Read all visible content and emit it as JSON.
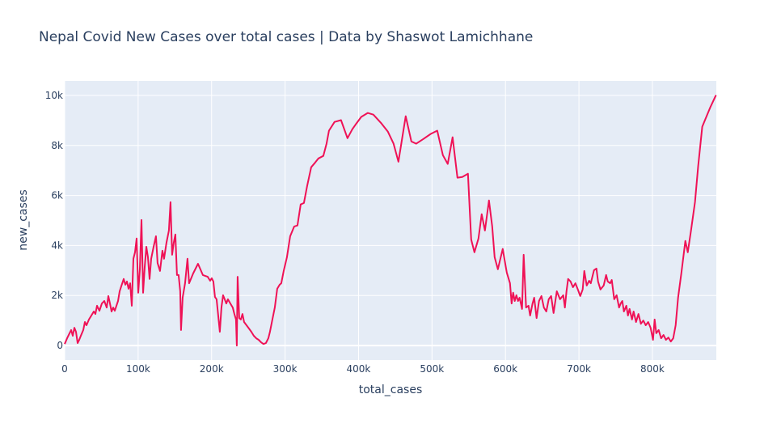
{
  "chart_data": {
    "type": "line",
    "title": "Nepal Covid New Cases over total cases | Data by Shaswot Lamichhane",
    "x_label": "total_cases",
    "y_label": "new_cases",
    "xlim": [
      0,
      887000
    ],
    "ylim": [
      -580,
      10580
    ],
    "xticks": [
      0,
      {
        "value": 100000,
        "label": "100k"
      },
      {
        "value": 200000,
        "label": "200k"
      },
      {
        "value": 300000,
        "label": "300k"
      },
      {
        "value": 400000,
        "label": "400k"
      },
      {
        "value": 500000,
        "label": "500k"
      },
      {
        "value": 600000,
        "label": "600k"
      },
      {
        "value": 700000,
        "label": "700k"
      },
      {
        "value": 800000,
        "label": "800k"
      }
    ],
    "yticks": [
      0,
      {
        "value": 2000,
        "label": "2k"
      },
      {
        "value": 4000,
        "label": "4k"
      },
      {
        "value": 6000,
        "label": "6k"
      },
      {
        "value": 8000,
        "label": "8k"
      },
      {
        "value": 10000,
        "label": "10k"
      }
    ],
    "grid": true,
    "series": [
      {
        "color": "#ef1256",
        "x": [
          0,
          3300,
          6600,
          8800,
          11000,
          13200,
          15400,
          17600,
          19800,
          22000,
          25300,
          27500,
          29700,
          33000,
          36300,
          39600,
          41800,
          44000,
          47300,
          50600,
          53900,
          57200,
          59400,
          61600,
          63800,
          66000,
          68200,
          70400,
          72600,
          74800,
          77000,
          80300,
          82500,
          84700,
          86900,
          89100,
          91300,
          93500,
          95700,
          97900,
          100100,
          102300,
          104500,
          106700,
          108900,
          111100,
          113300,
          115500,
          117700,
          121000,
          124300,
          126500,
          129800,
          133100,
          135300,
          138600,
          141900,
          144100,
          146300,
          148500,
          150700,
          152900,
          155100,
          157300,
          158400,
          160600,
          163900,
          167200,
          169400,
          174900,
          181500,
          188100,
          194700,
          198000,
          200200,
          202400,
          204600,
          206800,
          209000,
          211200,
          213400,
          215600,
          217800,
          220000,
          222200,
          225500,
          228800,
          231000,
          233200,
          234300,
          235400,
          237600,
          239800,
          242000,
          244200,
          247500,
          250800,
          254100,
          257400,
          260700,
          264000,
          267300,
          270600,
          273900,
          277200,
          279400,
          282700,
          286000,
          289300,
          292600,
          294800,
          298100,
          302500,
          306900,
          312400,
          316800,
          321200,
          325600,
          330000,
          335500,
          341000,
          345400,
          352000,
          356400,
          359700,
          367400,
          376200,
          385000,
          391600,
          397100,
          403700,
          412500,
          420200,
          431200,
          440000,
          447700,
          454300,
          458700,
          464200,
          471900,
          478500,
          488400,
          498300,
          507100,
          514800,
          521400,
          528000,
          534600,
          541200,
          548900,
          553300,
          557700,
          563200,
          567600,
          572000,
          577500,
          581900,
          585200,
          589600,
          596200,
          601700,
          606100,
          608300,
          610500,
          612700,
          614900,
          617100,
          619300,
          622600,
          624800,
          628100,
          631400,
          633600,
          636900,
          639100,
          642400,
          645700,
          649000,
          652300,
          655600,
          658900,
          662200,
          665500,
          669900,
          674300,
          678700,
          680900,
          683100,
          685300,
          688600,
          691900,
          695200,
          698500,
          701800,
          705100,
          707300,
          710600,
          713900,
          716100,
          720500,
          723800,
          726000,
          729300,
          733700,
          737000,
          739200,
          742500,
          744700,
          748000,
          751300,
          754600,
          756800,
          759000,
          761200,
          764500,
          766700,
          768900,
          772200,
          774400,
          777700,
          781000,
          784300,
          787600,
          790900,
          794200,
          797500,
          800800,
          803000,
          805200,
          808500,
          811800,
          815100,
          818400,
          821700,
          825000,
          828300,
          831600,
          834900,
          839300,
          844800,
          848100,
          852500,
          858000,
          862400,
          867900,
          873400,
          878900,
          886600
        ],
        "values": [
          60,
          290,
          490,
          620,
          390,
          710,
          550,
          100,
          230,
          390,
          620,
          940,
          810,
          1040,
          1200,
          1360,
          1260,
          1590,
          1390,
          1680,
          1780,
          1520,
          1980,
          1680,
          1360,
          1520,
          1390,
          1590,
          1780,
          2170,
          2370,
          2660,
          2430,
          2560,
          2270,
          2490,
          1590,
          3470,
          3730,
          4280,
          2110,
          3050,
          5020,
          2110,
          3140,
          3950,
          3530,
          2660,
          3470,
          3950,
          4370,
          3300,
          2980,
          3790,
          3470,
          4110,
          4600,
          5730,
          3630,
          4110,
          4440,
          2820,
          2820,
          2170,
          620,
          1910,
          2490,
          3470,
          2490,
          2880,
          3270,
          2820,
          2750,
          2590,
          2690,
          2560,
          1940,
          1850,
          1200,
          550,
          1520,
          2010,
          1850,
          1680,
          1850,
          1680,
          1520,
          1260,
          1040,
          0,
          2750,
          1100,
          1040,
          1260,
          940,
          810,
          680,
          550,
          390,
          290,
          230,
          130,
          60,
          100,
          290,
          550,
          1040,
          1520,
          2270,
          2430,
          2490,
          2980,
          3530,
          4370,
          4760,
          4800,
          5640,
          5700,
          6380,
          7130,
          7320,
          7480,
          7580,
          8070,
          8590,
          8940,
          9010,
          8290,
          8650,
          8880,
          9140,
          9300,
          9230,
          8880,
          8550,
          8070,
          7350,
          8160,
          9170,
          8160,
          8070,
          8260,
          8460,
          8590,
          7610,
          7260,
          8330,
          6710,
          6740,
          6870,
          4240,
          3730,
          4280,
          5250,
          4600,
          5800,
          4760,
          3530,
          3050,
          3860,
          2920,
          2490,
          1680,
          2110,
          1780,
          2010,
          1780,
          1910,
          1460,
          3630,
          1520,
          1590,
          1200,
          1680,
          1910,
          1100,
          1780,
          1980,
          1520,
          1360,
          1850,
          1980,
          1300,
          2170,
          1850,
          2010,
          1520,
          2170,
          2660,
          2560,
          2330,
          2490,
          2240,
          1980,
          2240,
          2980,
          2400,
          2590,
          2490,
          3010,
          3080,
          2560,
          2240,
          2400,
          2820,
          2560,
          2490,
          2620,
          1850,
          2010,
          1520,
          1680,
          1780,
          1360,
          1590,
          1200,
          1460,
          1040,
          1360,
          940,
          1260,
          870,
          1000,
          810,
          940,
          710,
          230,
          1040,
          490,
          620,
          290,
          420,
          230,
          320,
          160,
          290,
          810,
          1910,
          2880,
          4180,
          3730,
          4600,
          5730,
          7190,
          8750,
          9140,
          9530,
          10010
        ]
      }
    ]
  }
}
